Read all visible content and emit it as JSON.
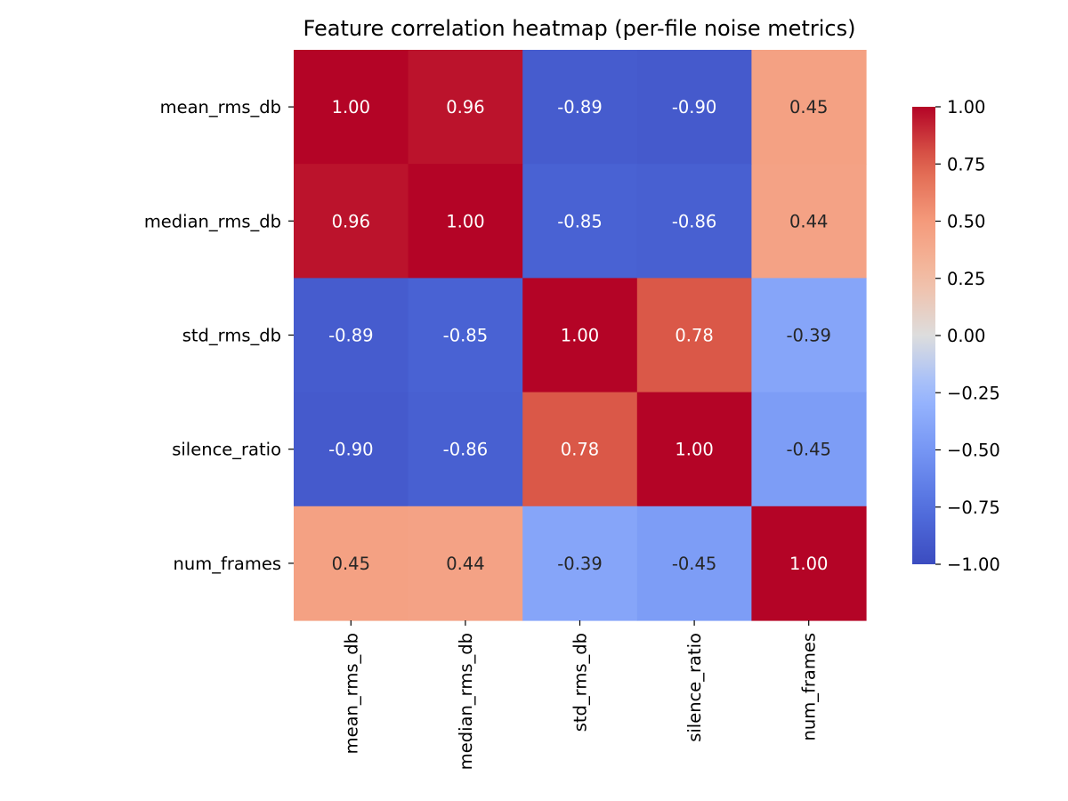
{
  "chart_data": {
    "type": "heatmap",
    "title": "Feature correlation heatmap (per-file noise metrics)",
    "row_labels": [
      "mean_rms_db",
      "median_rms_db",
      "std_rms_db",
      "silence_ratio",
      "num_frames"
    ],
    "col_labels": [
      "mean_rms_db",
      "median_rms_db",
      "std_rms_db",
      "silence_ratio",
      "num_frames"
    ],
    "values": [
      [
        1.0,
        0.96,
        -0.89,
        -0.9,
        0.45
      ],
      [
        0.96,
        1.0,
        -0.85,
        -0.86,
        0.44
      ],
      [
        -0.89,
        -0.85,
        1.0,
        0.78,
        -0.39
      ],
      [
        -0.9,
        -0.86,
        0.78,
        1.0,
        -0.45
      ],
      [
        0.45,
        0.44,
        -0.39,
        -0.45,
        1.0
      ]
    ],
    "annotations": [
      [
        "1.00",
        "0.96",
        "-0.89",
        "-0.90",
        "0.45"
      ],
      [
        "0.96",
        "1.00",
        "-0.85",
        "-0.86",
        "0.44"
      ],
      [
        "-0.89",
        "-0.85",
        "1.00",
        "0.78",
        "-0.39"
      ],
      [
        "-0.90",
        "-0.86",
        "0.78",
        "1.00",
        "-0.45"
      ],
      [
        "0.45",
        "0.44",
        "-0.39",
        "-0.45",
        "1.00"
      ]
    ],
    "colormap": "coolwarm",
    "vmin": -1.0,
    "vmax": 1.0,
    "colorbar_ticks": [
      1.0,
      0.75,
      0.5,
      0.25,
      0.0,
      -0.25,
      -0.5,
      -0.75,
      -1.0
    ],
    "colorbar_tick_labels": [
      "1.00",
      "0.75",
      "0.50",
      "0.25",
      "0.00",
      "−0.25",
      "−0.50",
      "−0.75",
      "−1.00"
    ]
  }
}
